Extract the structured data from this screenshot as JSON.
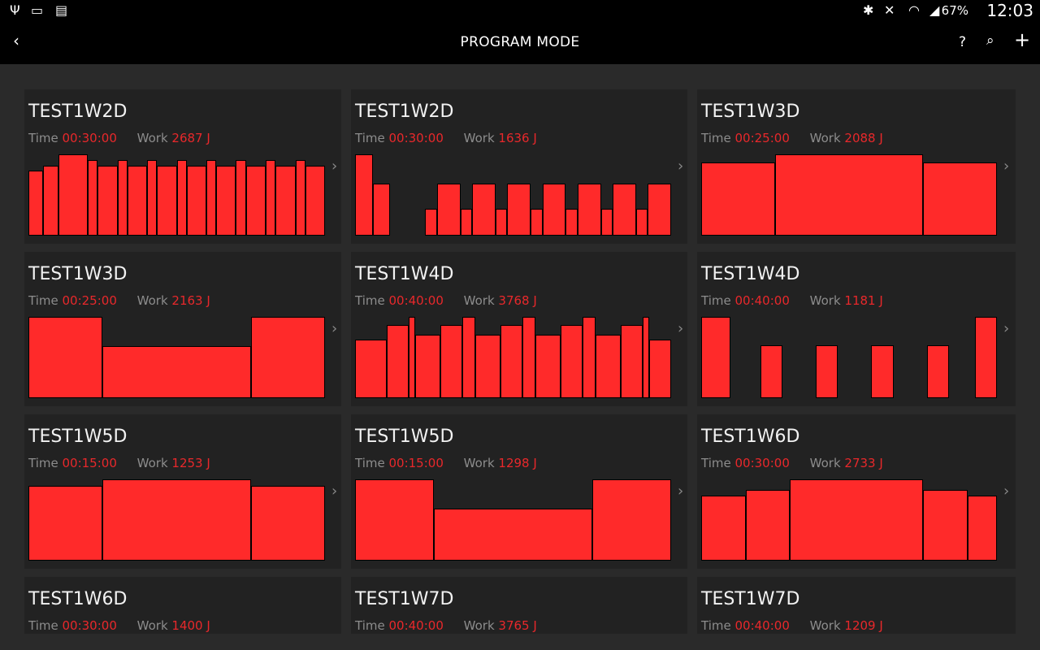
{
  "status_bar": {
    "left_icons": [
      "usb-icon",
      "screen-cast-icon",
      "sim-card-off-icon"
    ],
    "right_icons": [
      "bluetooth-icon",
      "vibrate-mute-icon",
      "wifi-icon",
      "signal-icon"
    ],
    "battery": "67%",
    "time": "12:03"
  },
  "app_bar": {
    "title": "PROGRAM MODE",
    "back": "‹",
    "help": "?",
    "search": "⌕",
    "add": "+"
  },
  "labels": {
    "time": "Time",
    "work": "Work"
  },
  "accent_color": "#ff2a2a",
  "programs": [
    {
      "name": "TEST1W2D",
      "time": "00:30:00",
      "work": "2687 J",
      "segments": [
        [
          3,
          0.8
        ],
        [
          3,
          0.86
        ],
        [
          6,
          1
        ],
        [
          2,
          0.93
        ],
        [
          4,
          0.86
        ],
        [
          2,
          0.93
        ],
        [
          4,
          0.86
        ],
        [
          2,
          0.93
        ],
        [
          4,
          0.86
        ],
        [
          2,
          0.93
        ],
        [
          4,
          0.86
        ],
        [
          2,
          0.93
        ],
        [
          4,
          0.86
        ],
        [
          2,
          0.93
        ],
        [
          4,
          0.86
        ],
        [
          2,
          0.93
        ],
        [
          4,
          0.86
        ],
        [
          2,
          0.93
        ],
        [
          4,
          0.86
        ]
      ]
    },
    {
      "name": "TEST1W2D",
      "time": "00:30:00",
      "work": "1636 J",
      "segments": [
        [
          3,
          1
        ],
        [
          3,
          0.64
        ],
        [
          6,
          0
        ],
        [
          2,
          0.33
        ],
        [
          4,
          0.64
        ],
        [
          2,
          0.33
        ],
        [
          4,
          0.64
        ],
        [
          2,
          0.33
        ],
        [
          4,
          0.64
        ],
        [
          2,
          0.33
        ],
        [
          4,
          0.64
        ],
        [
          2,
          0.33
        ],
        [
          4,
          0.64
        ],
        [
          2,
          0.33
        ],
        [
          4,
          0.64
        ],
        [
          2,
          0.33
        ],
        [
          4,
          0.64
        ]
      ]
    },
    {
      "name": "TEST1W3D",
      "time": "00:25:00",
      "work": "2088 J",
      "segments": [
        [
          1,
          0.9
        ],
        [
          2,
          1
        ],
        [
          1,
          0.9
        ]
      ]
    },
    {
      "name": "TEST1W3D",
      "time": "00:25:00",
      "work": "2163 J",
      "segments": [
        [
          1,
          1
        ],
        [
          2,
          0.64
        ],
        [
          1,
          1
        ]
      ]
    },
    {
      "name": "TEST1W4D",
      "time": "00:40:00",
      "work": "3768 J",
      "segments": [
        [
          10,
          0.72
        ],
        [
          7,
          0.9
        ],
        [
          2,
          1
        ],
        [
          8,
          0.78
        ],
        [
          7,
          0.9
        ],
        [
          4,
          1
        ],
        [
          8,
          0.78
        ],
        [
          7,
          0.9
        ],
        [
          4,
          1
        ],
        [
          8,
          0.78
        ],
        [
          7,
          0.9
        ],
        [
          4,
          1
        ],
        [
          8,
          0.78
        ],
        [
          7,
          0.9
        ],
        [
          2,
          1
        ],
        [
          7,
          0.72
        ]
      ]
    },
    {
      "name": "TEST1W4D",
      "time": "00:40:00",
      "work": "1181 J",
      "segments": [
        [
          4,
          1
        ],
        [
          4,
          0
        ],
        [
          3,
          0.65
        ],
        [
          4.5,
          0
        ],
        [
          3,
          0.65
        ],
        [
          4.5,
          0
        ],
        [
          3,
          0.65
        ],
        [
          4.5,
          0
        ],
        [
          3,
          0.65
        ],
        [
          3.5,
          0
        ],
        [
          3,
          1
        ]
      ]
    },
    {
      "name": "TEST1W5D",
      "time": "00:15:00",
      "work": "1253 J",
      "segments": [
        [
          1,
          0.92
        ],
        [
          2,
          1
        ],
        [
          1,
          0.92
        ]
      ]
    },
    {
      "name": "TEST1W5D",
      "time": "00:15:00",
      "work": "1298 J",
      "segments": [
        [
          1,
          1
        ],
        [
          2,
          0.64
        ],
        [
          1,
          1
        ]
      ]
    },
    {
      "name": "TEST1W6D",
      "time": "00:30:00",
      "work": "2733 J",
      "segments": [
        [
          3,
          0.8
        ],
        [
          3,
          0.87
        ],
        [
          9,
          1
        ],
        [
          3,
          0.87
        ],
        [
          2,
          0.8
        ]
      ]
    },
    {
      "name": "TEST1W6D",
      "time": "00:30:00",
      "work": "1400 J",
      "segments": []
    },
    {
      "name": "TEST1W7D",
      "time": "00:40:00",
      "work": "3765 J",
      "segments": []
    },
    {
      "name": "TEST1W7D",
      "time": "00:40:00",
      "work": "1209 J",
      "segments": []
    }
  ]
}
